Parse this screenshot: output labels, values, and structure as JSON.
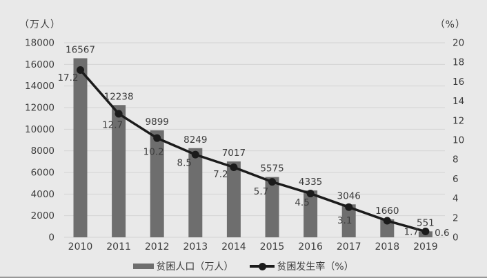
{
  "axes": {
    "left_title": "（万人）",
    "right_title": "（%）",
    "left_ticks": [
      18000,
      16000,
      14000,
      12000,
      10000,
      8000,
      6000,
      4000,
      2000,
      0
    ],
    "right_ticks": [
      20,
      18,
      16,
      14,
      12,
      10,
      8,
      6,
      4,
      2,
      0
    ]
  },
  "chart_data": {
    "type": "bar",
    "categories": [
      "2010",
      "2011",
      "2012",
      "2013",
      "2014",
      "2015",
      "2016",
      "2017",
      "2018",
      "2019"
    ],
    "series": [
      {
        "name": "贫困人口（万人）",
        "type": "bar",
        "axis": "left",
        "values": [
          16567,
          12238,
          9899,
          8249,
          7017,
          5575,
          4335,
          3046,
          1660,
          551
        ]
      },
      {
        "name": "贫困发生率（%）",
        "type": "line",
        "axis": "right",
        "values": [
          17.2,
          12.7,
          10.2,
          8.5,
          7.2,
          5.7,
          4.5,
          3.1,
          1.7,
          0.6
        ]
      }
    ],
    "title": "",
    "xlabel": "",
    "ylabel_left": "（万人）",
    "ylabel_right": "（%）",
    "ylim_left": [
      0,
      18000
    ],
    "ylim_right": [
      0,
      20
    ],
    "grid": true,
    "legend_position": "bottom"
  },
  "colors": {
    "background": "#e9e9e9",
    "bar": "#6e6e6e",
    "line": "#1b1b1b",
    "grid": "#d4d4d4",
    "text": "#3c3c3c"
  }
}
